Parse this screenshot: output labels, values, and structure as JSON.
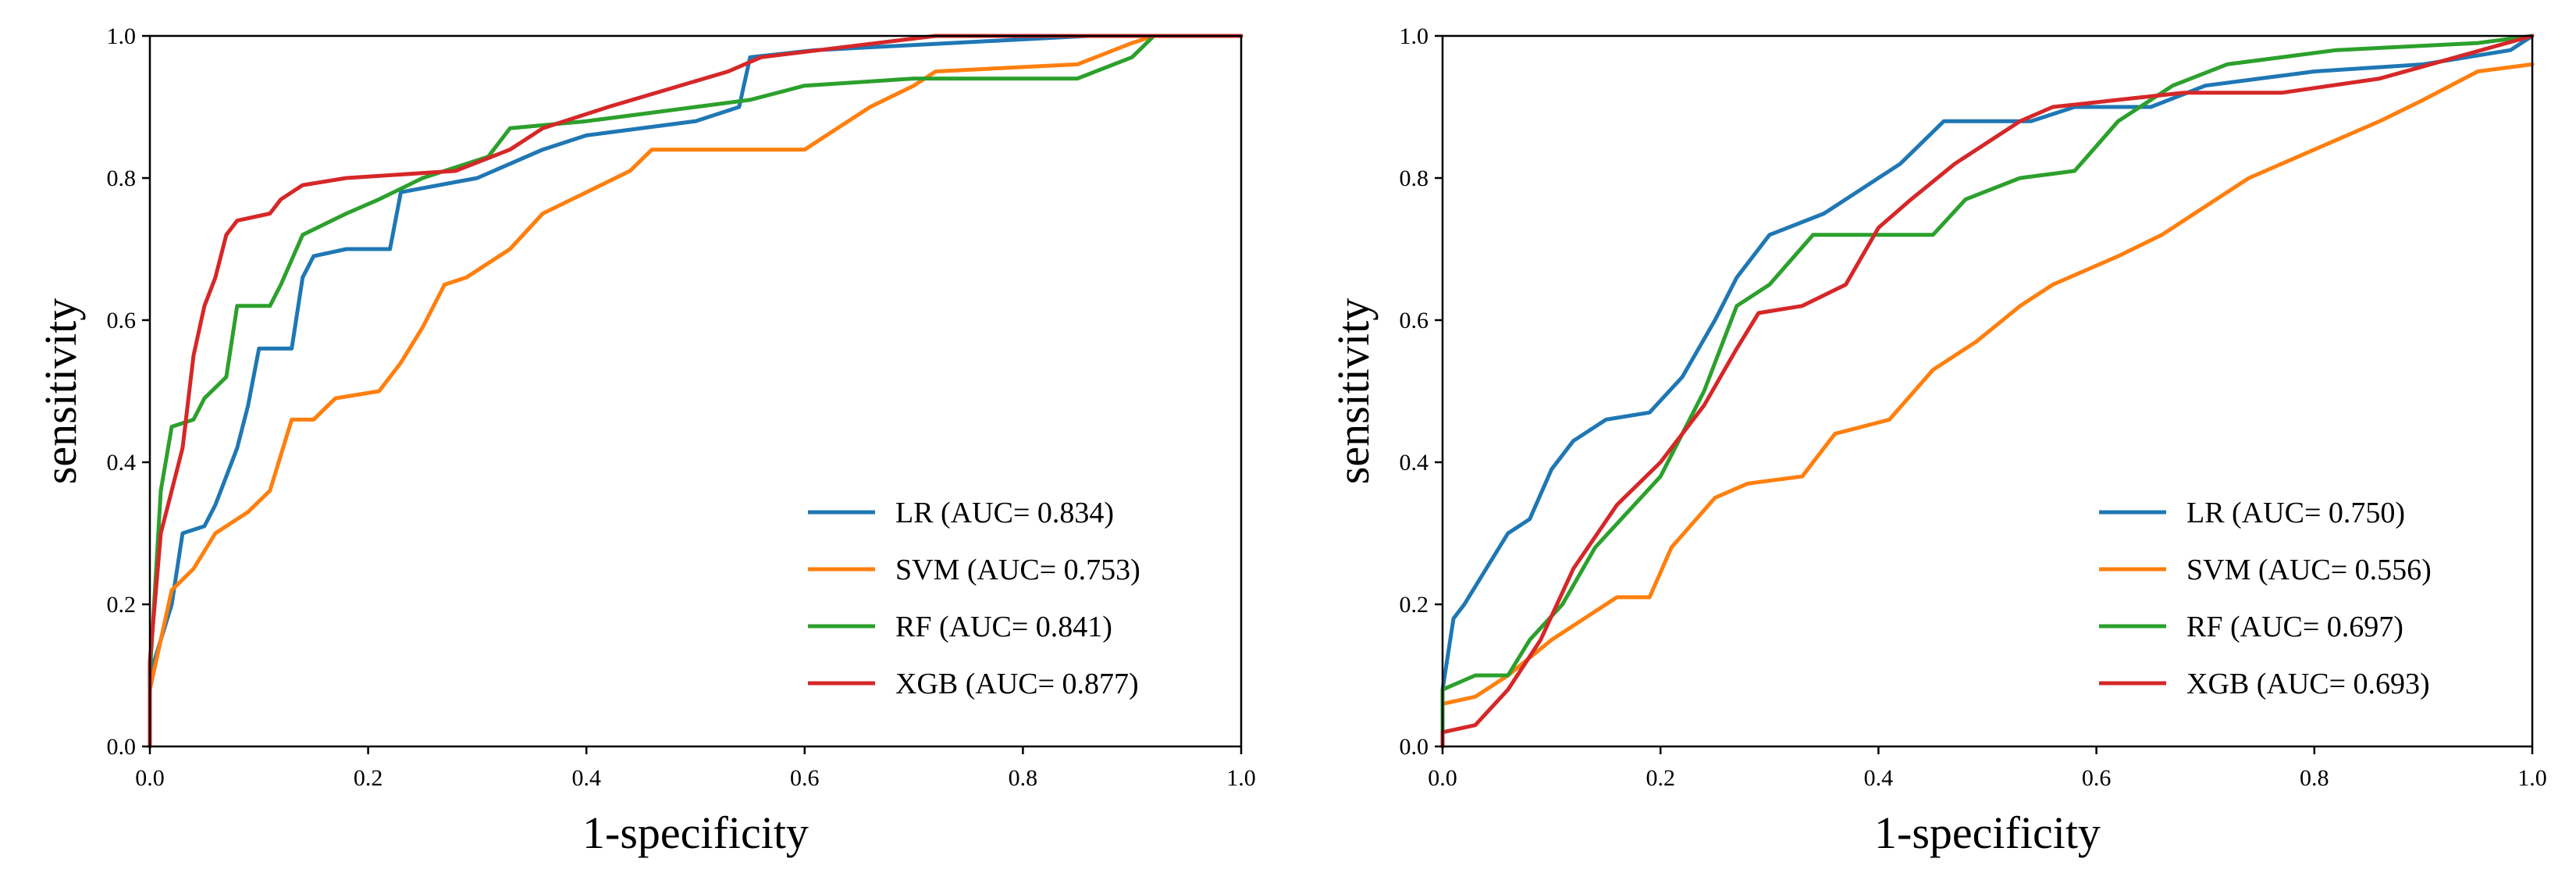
{
  "chart_data": [
    {
      "type": "line",
      "panel": "left",
      "title": "",
      "xlabel": "1-specificity",
      "ylabel": "sensitivity",
      "xlim": [
        0,
        1
      ],
      "ylim": [
        0,
        1
      ],
      "xticks": [
        "0.0",
        "0.2",
        "0.4",
        "0.6",
        "0.8",
        "1.0"
      ],
      "yticks": [
        "0.0",
        "0.2",
        "0.4",
        "0.6",
        "0.8",
        "1.0"
      ],
      "legend_position": "lower-right",
      "series": [
        {
          "name": "LR (AUC= 0.834)",
          "color": "#1f77b4",
          "points": [
            [
              0,
              0
            ],
            [
              0,
              0.1
            ],
            [
              0.01,
              0.15
            ],
            [
              0.02,
              0.2
            ],
            [
              0.03,
              0.3
            ],
            [
              0.05,
              0.31
            ],
            [
              0.06,
              0.34
            ],
            [
              0.07,
              0.38
            ],
            [
              0.08,
              0.42
            ],
            [
              0.09,
              0.48
            ],
            [
              0.1,
              0.56
            ],
            [
              0.13,
              0.56
            ],
            [
              0.14,
              0.66
            ],
            [
              0.15,
              0.69
            ],
            [
              0.18,
              0.7
            ],
            [
              0.22,
              0.7
            ],
            [
              0.23,
              0.78
            ],
            [
              0.3,
              0.8
            ],
            [
              0.36,
              0.84
            ],
            [
              0.4,
              0.86
            ],
            [
              0.5,
              0.88
            ],
            [
              0.54,
              0.9
            ],
            [
              0.55,
              0.97
            ],
            [
              0.61,
              0.98
            ],
            [
              0.86,
              1.0
            ],
            [
              1.0,
              1.0
            ]
          ]
        },
        {
          "name": "SVM (AUC= 0.753)",
          "color": "#ff7f0e",
          "points": [
            [
              0,
              0
            ],
            [
              0,
              0.08
            ],
            [
              0.01,
              0.15
            ],
            [
              0.02,
              0.22
            ],
            [
              0.04,
              0.25
            ],
            [
              0.06,
              0.3
            ],
            [
              0.09,
              0.33
            ],
            [
              0.11,
              0.36
            ],
            [
              0.12,
              0.41
            ],
            [
              0.13,
              0.46
            ],
            [
              0.15,
              0.46
            ],
            [
              0.17,
              0.49
            ],
            [
              0.21,
              0.5
            ],
            [
              0.23,
              0.54
            ],
            [
              0.25,
              0.59
            ],
            [
              0.27,
              0.65
            ],
            [
              0.29,
              0.66
            ],
            [
              0.33,
              0.7
            ],
            [
              0.36,
              0.75
            ],
            [
              0.4,
              0.78
            ],
            [
              0.44,
              0.81
            ],
            [
              0.46,
              0.84
            ],
            [
              0.6,
              0.84
            ],
            [
              0.63,
              0.87
            ],
            [
              0.66,
              0.9
            ],
            [
              0.7,
              0.93
            ],
            [
              0.72,
              0.95
            ],
            [
              0.85,
              0.96
            ],
            [
              0.9,
              0.99
            ],
            [
              0.92,
              1.0
            ],
            [
              1.0,
              1.0
            ]
          ]
        },
        {
          "name": "RF (AUC= 0.841)",
          "color": "#2ca02c",
          "points": [
            [
              0,
              0
            ],
            [
              0,
              0.1
            ],
            [
              0.01,
              0.36
            ],
            [
              0.02,
              0.45
            ],
            [
              0.04,
              0.46
            ],
            [
              0.05,
              0.49
            ],
            [
              0.07,
              0.52
            ],
            [
              0.08,
              0.62
            ],
            [
              0.11,
              0.62
            ],
            [
              0.12,
              0.65
            ],
            [
              0.14,
              0.72
            ],
            [
              0.18,
              0.75
            ],
            [
              0.21,
              0.77
            ],
            [
              0.25,
              0.8
            ],
            [
              0.31,
              0.83
            ],
            [
              0.33,
              0.87
            ],
            [
              0.4,
              0.88
            ],
            [
              0.45,
              0.89
            ],
            [
              0.5,
              0.9
            ],
            [
              0.55,
              0.91
            ],
            [
              0.6,
              0.93
            ],
            [
              0.7,
              0.94
            ],
            [
              0.85,
              0.94
            ],
            [
              0.9,
              0.97
            ],
            [
              0.92,
              1.0
            ],
            [
              1.0,
              1.0
            ]
          ]
        },
        {
          "name": "XGB (AUC= 0.877)",
          "color": "#d62728",
          "points": [
            [
              0,
              0
            ],
            [
              0,
              0.12
            ],
            [
              0.01,
              0.3
            ],
            [
              0.02,
              0.36
            ],
            [
              0.03,
              0.42
            ],
            [
              0.04,
              0.55
            ],
            [
              0.05,
              0.62
            ],
            [
              0.06,
              0.66
            ],
            [
              0.07,
              0.72
            ],
            [
              0.08,
              0.74
            ],
            [
              0.11,
              0.75
            ],
            [
              0.12,
              0.77
            ],
            [
              0.14,
              0.79
            ],
            [
              0.18,
              0.8
            ],
            [
              0.28,
              0.81
            ],
            [
              0.33,
              0.84
            ],
            [
              0.36,
              0.87
            ],
            [
              0.42,
              0.9
            ],
            [
              0.53,
              0.95
            ],
            [
              0.56,
              0.97
            ],
            [
              0.72,
              1.0
            ],
            [
              1.0,
              1.0
            ]
          ]
        }
      ]
    },
    {
      "type": "line",
      "panel": "right",
      "title": "",
      "xlabel": "1-specificity",
      "ylabel": "sensitivity",
      "xlim": [
        0,
        1
      ],
      "ylim": [
        0,
        1
      ],
      "xticks": [
        "0.0",
        "0.2",
        "0.4",
        "0.6",
        "0.8",
        "1.0"
      ],
      "yticks": [
        "0.0",
        "0.2",
        "0.4",
        "0.6",
        "0.8",
        "1.0"
      ],
      "legend_position": "lower-right",
      "series": [
        {
          "name": "LR (AUC= 0.750)",
          "color": "#1f77b4",
          "points": [
            [
              0,
              0
            ],
            [
              0,
              0.08
            ],
            [
              0.01,
              0.18
            ],
            [
              0.02,
              0.2
            ],
            [
              0.04,
              0.25
            ],
            [
              0.06,
              0.3
            ],
            [
              0.08,
              0.32
            ],
            [
              0.1,
              0.39
            ],
            [
              0.12,
              0.43
            ],
            [
              0.15,
              0.46
            ],
            [
              0.19,
              0.47
            ],
            [
              0.22,
              0.52
            ],
            [
              0.25,
              0.6
            ],
            [
              0.27,
              0.66
            ],
            [
              0.3,
              0.72
            ],
            [
              0.35,
              0.75
            ],
            [
              0.38,
              0.78
            ],
            [
              0.42,
              0.82
            ],
            [
              0.46,
              0.88
            ],
            [
              0.54,
              0.88
            ],
            [
              0.58,
              0.9
            ],
            [
              0.65,
              0.9
            ],
            [
              0.7,
              0.93
            ],
            [
              0.8,
              0.95
            ],
            [
              0.9,
              0.96
            ],
            [
              0.98,
              0.98
            ],
            [
              1.0,
              1.0
            ]
          ]
        },
        {
          "name": "SVM (AUC= 0.556)",
          "color": "#ff7f0e",
          "points": [
            [
              0,
              0
            ],
            [
              0,
              0.06
            ],
            [
              0.03,
              0.07
            ],
            [
              0.06,
              0.1
            ],
            [
              0.1,
              0.15
            ],
            [
              0.13,
              0.18
            ],
            [
              0.16,
              0.21
            ],
            [
              0.19,
              0.21
            ],
            [
              0.21,
              0.28
            ],
            [
              0.25,
              0.35
            ],
            [
              0.28,
              0.37
            ],
            [
              0.33,
              0.38
            ],
            [
              0.36,
              0.44
            ],
            [
              0.41,
              0.46
            ],
            [
              0.45,
              0.53
            ],
            [
              0.49,
              0.57
            ],
            [
              0.53,
              0.62
            ],
            [
              0.56,
              0.65
            ],
            [
              0.62,
              0.69
            ],
            [
              0.66,
              0.72
            ],
            [
              0.7,
              0.76
            ],
            [
              0.74,
              0.8
            ],
            [
              0.8,
              0.84
            ],
            [
              0.86,
              0.88
            ],
            [
              0.9,
              0.91
            ],
            [
              0.95,
              0.95
            ],
            [
              1.0,
              0.96
            ]
          ]
        },
        {
          "name": "RF (AUC= 0.697)",
          "color": "#2ca02c",
          "points": [
            [
              0,
              0
            ],
            [
              0,
              0.08
            ],
            [
              0.03,
              0.1
            ],
            [
              0.06,
              0.1
            ],
            [
              0.08,
              0.15
            ],
            [
              0.11,
              0.2
            ],
            [
              0.14,
              0.28
            ],
            [
              0.17,
              0.33
            ],
            [
              0.2,
              0.38
            ],
            [
              0.24,
              0.5
            ],
            [
              0.27,
              0.62
            ],
            [
              0.3,
              0.65
            ],
            [
              0.34,
              0.72
            ],
            [
              0.45,
              0.72
            ],
            [
              0.48,
              0.77
            ],
            [
              0.53,
              0.8
            ],
            [
              0.58,
              0.81
            ],
            [
              0.62,
              0.88
            ],
            [
              0.67,
              0.93
            ],
            [
              0.72,
              0.96
            ],
            [
              0.82,
              0.98
            ],
            [
              0.95,
              0.99
            ],
            [
              1.0,
              1.0
            ]
          ]
        },
        {
          "name": "XGB (AUC= 0.693)",
          "color": "#d62728",
          "points": [
            [
              0,
              0
            ],
            [
              0,
              0.02
            ],
            [
              0.03,
              0.03
            ],
            [
              0.06,
              0.08
            ],
            [
              0.09,
              0.15
            ],
            [
              0.12,
              0.25
            ],
            [
              0.16,
              0.34
            ],
            [
              0.2,
              0.4
            ],
            [
              0.24,
              0.48
            ],
            [
              0.27,
              0.56
            ],
            [
              0.29,
              0.61
            ],
            [
              0.33,
              0.62
            ],
            [
              0.37,
              0.65
            ],
            [
              0.4,
              0.73
            ],
            [
              0.43,
              0.77
            ],
            [
              0.47,
              0.82
            ],
            [
              0.53,
              0.88
            ],
            [
              0.56,
              0.9
            ],
            [
              0.62,
              0.91
            ],
            [
              0.68,
              0.92
            ],
            [
              0.77,
              0.92
            ],
            [
              0.86,
              0.94
            ],
            [
              0.93,
              0.97
            ],
            [
              1.0,
              1.0
            ]
          ]
        }
      ]
    }
  ]
}
